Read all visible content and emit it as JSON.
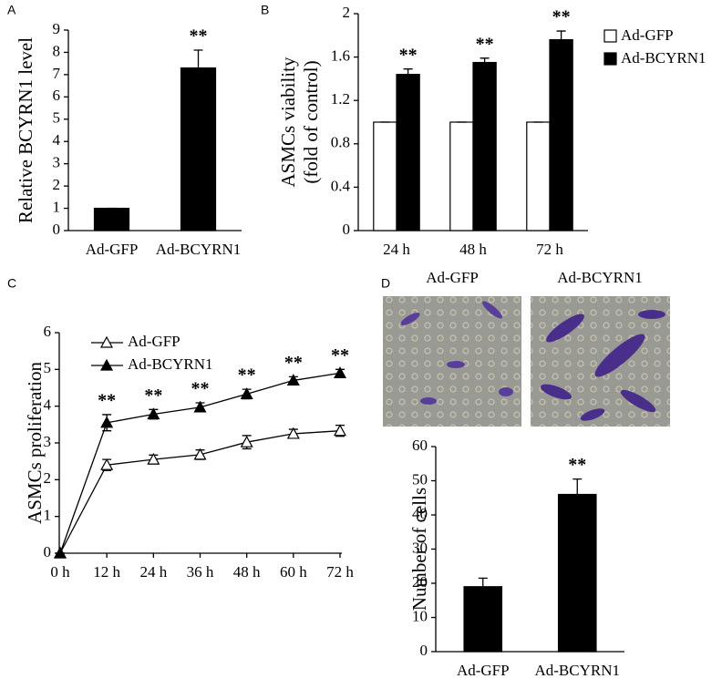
{
  "chart_data": [
    {
      "type": "bar",
      "panel": "A",
      "ylabel": [
        "Relative BCYRN1 level"
      ],
      "categories": [
        "Ad-GFP",
        "Ad-BCYRN1"
      ],
      "values": [
        1,
        7.3
      ],
      "errors": [
        0,
        0.8
      ],
      "color": "#000000",
      "significance": [
        null,
        "**"
      ],
      "ylim": [
        0,
        9
      ],
      "yticks": [
        0,
        1,
        2,
        3,
        4,
        5,
        6,
        7,
        8,
        9
      ]
    },
    {
      "type": "bar",
      "panel": "B",
      "ylabel": [
        "ASMCs viability",
        "(fold of control)"
      ],
      "categories": [
        "24 h",
        "48 h",
        "72 h"
      ],
      "series": [
        {
          "name": "Ad-GFP",
          "color": "#ffffff",
          "values": [
            1,
            1,
            1
          ],
          "errors": [
            0,
            0,
            0
          ]
        },
        {
          "name": "Ad-BCYRN1",
          "color": "#000000",
          "values": [
            1.44,
            1.55,
            1.76
          ],
          "errors": [
            0.05,
            0.04,
            0.08
          ]
        }
      ],
      "significance": [
        "**",
        "**",
        "**"
      ],
      "ylim": [
        0,
        2
      ],
      "yticks": [
        0,
        0.4,
        0.8,
        1.2,
        1.6,
        2
      ]
    },
    {
      "type": "line",
      "panel": "C",
      "ylabel": [
        "ASMCs proliferation"
      ],
      "categories": [
        "0 h",
        "12 h",
        "24 h",
        "36 h",
        "48 h",
        "60 h",
        "72 h"
      ],
      "series": [
        {
          "name": "Ad-GFP",
          "color": "#ffffff",
          "values": [
            0,
            2.4,
            2.55,
            2.68,
            3.02,
            3.25,
            3.33
          ],
          "errors": [
            0,
            0.15,
            0.12,
            0.13,
            0.18,
            0.12,
            0.15
          ]
        },
        {
          "name": "Ad-BCYRN1",
          "color": "#000000",
          "values": [
            0,
            3.55,
            3.78,
            3.97,
            4.33,
            4.7,
            4.9
          ],
          "errors": [
            0,
            0.22,
            0.13,
            0.12,
            0.13,
            0.1,
            0.1
          ]
        }
      ],
      "significance": [
        null,
        "**",
        "**",
        "**",
        "**",
        "**",
        "**"
      ],
      "ylim": [
        0,
        6
      ],
      "yticks": [
        0,
        1,
        2,
        3,
        4,
        5,
        6
      ]
    },
    {
      "type": "bar",
      "panel": "D",
      "image_labels": [
        "Ad-GFP",
        "Ad-BCYRN1"
      ],
      "ylabel": [
        "Number of cells"
      ],
      "categories": [
        "Ad-GFP",
        "Ad-BCYRN1"
      ],
      "values": [
        19,
        46
      ],
      "errors": [
        2.5,
        4.5
      ],
      "color": "#000000",
      "significance": [
        null,
        "**"
      ],
      "ylim": [
        0,
        60
      ],
      "yticks": [
        0,
        10,
        20,
        30,
        40,
        50,
        60
      ]
    }
  ]
}
